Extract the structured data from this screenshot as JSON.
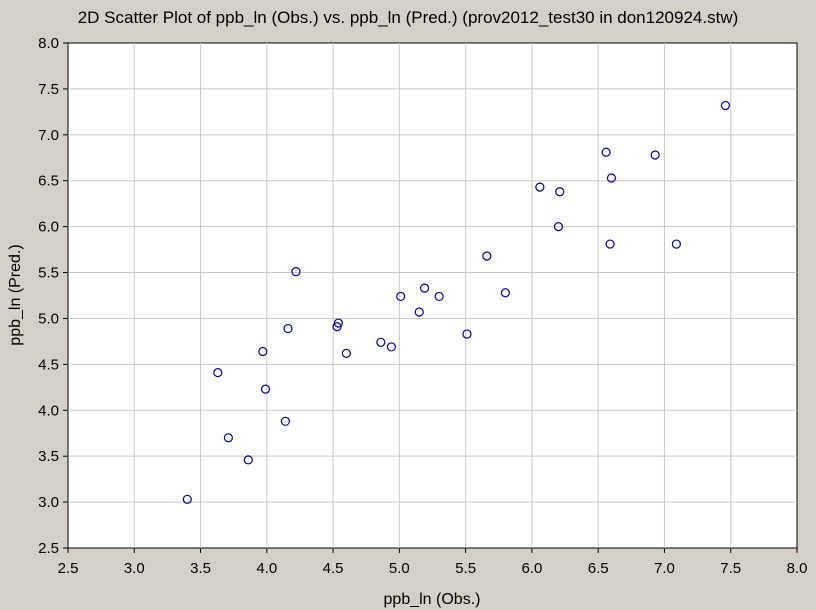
{
  "chart_data": {
    "type": "scatter",
    "title": "2D Scatter Plot of ppb_ln (Obs.) vs. ppb_ln (Pred.) (prov2012_test30 in don120924.stw)",
    "xlabel": "ppb_ln (Obs.)",
    "ylabel": "ppb_ln (Pred.)",
    "xlim": [
      2.5,
      8.0
    ],
    "ylim": [
      2.5,
      8.0
    ],
    "xticks": [
      "2.5",
      "3.0",
      "3.5",
      "4.0",
      "4.5",
      "5.0",
      "5.5",
      "6.0",
      "6.5",
      "7.0",
      "7.5",
      "8.0"
    ],
    "yticks": [
      "2.5",
      "3.0",
      "3.5",
      "4.0",
      "4.5",
      "5.0",
      "5.5",
      "6.0",
      "6.5",
      "7.0",
      "7.5",
      "8.0"
    ],
    "grid": true,
    "marker_color": "#0000a0",
    "points": [
      {
        "x": 3.4,
        "y": 3.03
      },
      {
        "x": 3.63,
        "y": 4.41
      },
      {
        "x": 3.71,
        "y": 3.7
      },
      {
        "x": 3.86,
        "y": 3.46
      },
      {
        "x": 3.97,
        "y": 4.64
      },
      {
        "x": 3.99,
        "y": 4.23
      },
      {
        "x": 4.14,
        "y": 3.88
      },
      {
        "x": 4.16,
        "y": 4.89
      },
      {
        "x": 4.22,
        "y": 5.51
      },
      {
        "x": 4.53,
        "y": 4.91
      },
      {
        "x": 4.54,
        "y": 4.95
      },
      {
        "x": 4.6,
        "y": 4.62
      },
      {
        "x": 4.86,
        "y": 4.74
      },
      {
        "x": 4.94,
        "y": 4.69
      },
      {
        "x": 5.01,
        "y": 5.24
      },
      {
        "x": 5.15,
        "y": 5.07
      },
      {
        "x": 5.19,
        "y": 5.33
      },
      {
        "x": 5.3,
        "y": 5.24
      },
      {
        "x": 5.51,
        "y": 4.83
      },
      {
        "x": 5.66,
        "y": 5.68
      },
      {
        "x": 5.8,
        "y": 5.28
      },
      {
        "x": 6.06,
        "y": 6.43
      },
      {
        "x": 6.2,
        "y": 6.0
      },
      {
        "x": 6.21,
        "y": 6.38
      },
      {
        "x": 6.56,
        "y": 6.81
      },
      {
        "x": 6.59,
        "y": 5.81
      },
      {
        "x": 6.6,
        "y": 6.53
      },
      {
        "x": 6.93,
        "y": 6.78
      },
      {
        "x": 7.09,
        "y": 5.81
      },
      {
        "x": 7.46,
        "y": 7.32
      }
    ]
  }
}
